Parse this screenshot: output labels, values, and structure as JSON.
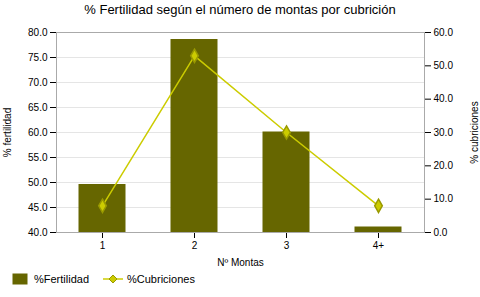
{
  "chart_data": {
    "type": "bar",
    "title": "% Fertilidad según el número de montas por cubrición",
    "categories": [
      "1",
      "2",
      "3",
      "4+"
    ],
    "xlabel": "Nº Montas",
    "ylabel": "% fertilidad",
    "y2label": "% cubriciones",
    "series": [
      {
        "name": "%Fertilidad",
        "type": "bar",
        "color": "#666600",
        "values": [
          49.5,
          78.5,
          60.0,
          41.0
        ]
      },
      {
        "name": "%Cubriciones",
        "type": "line",
        "axis": "y2",
        "color": "#cccc00",
        "marker": "diamond",
        "values": [
          8.0,
          53.0,
          30.0,
          8.0
        ]
      }
    ],
    "ylim": [
      40.0,
      80.0
    ],
    "yticks": [
      {
        "value": 40,
        "label": "40.0"
      },
      {
        "value": 45,
        "label": "45.0"
      },
      {
        "value": 50,
        "label": "50.0"
      },
      {
        "value": 55,
        "label": "55.0"
      },
      {
        "value": 60,
        "label": "60.0"
      },
      {
        "value": 65,
        "label": "65.0"
      },
      {
        "value": 70,
        "label": "70.0"
      },
      {
        "value": 75,
        "label": "75.0"
      },
      {
        "value": 80,
        "label": "80.0"
      }
    ],
    "y2lim": [
      0.0,
      60.0
    ],
    "y2ticks": [
      {
        "value": 0,
        "label": "0.0"
      },
      {
        "value": 10,
        "label": "10.0"
      },
      {
        "value": 20,
        "label": "20.0"
      },
      {
        "value": 30,
        "label": "30.0"
      },
      {
        "value": 40,
        "label": "40.0"
      },
      {
        "value": 50,
        "label": "50.0"
      },
      {
        "value": 60,
        "label": "60.0"
      }
    ],
    "grid": true,
    "legend": "bottom"
  }
}
